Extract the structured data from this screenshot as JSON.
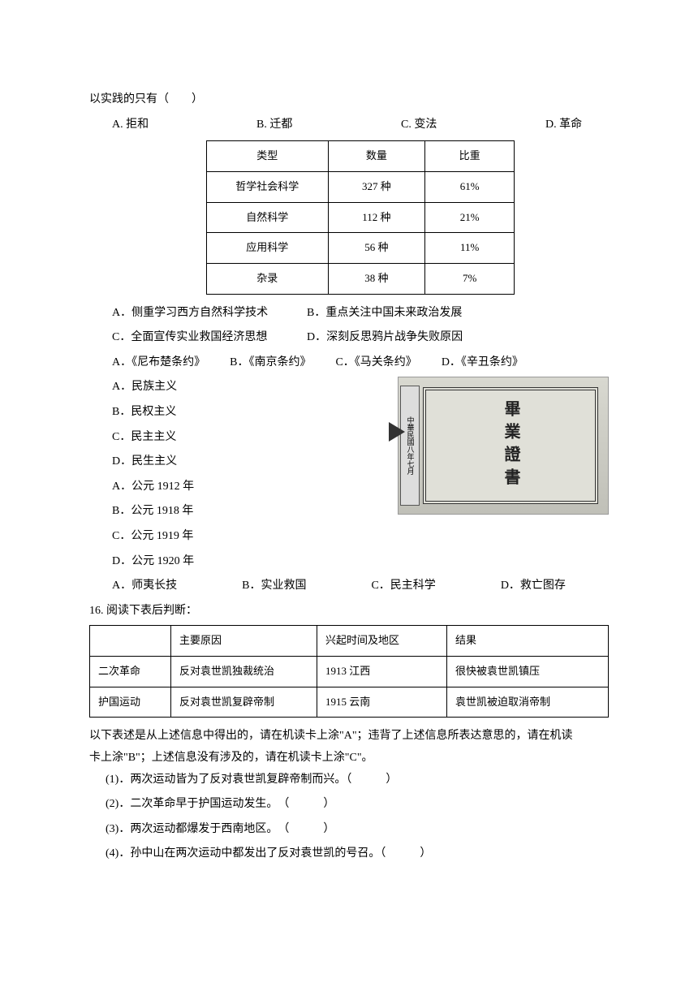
{
  "q1": {
    "text": "以实践的只有（　　）",
    "options": {
      "a": "A. 拒和",
      "b": "B. 迁都",
      "c": "C. 变法",
      "d": "D. 革命"
    }
  },
  "types_table": {
    "headers": [
      "类型",
      "数量",
      "比重"
    ],
    "rows": [
      [
        "哲学社会科学",
        "327 种",
        "61%"
      ],
      [
        "自然科学",
        "112 种",
        "21%"
      ],
      [
        "应用科学",
        "56 种",
        "11%"
      ],
      [
        "杂录",
        "38 种",
        "7%"
      ]
    ]
  },
  "q2": {
    "options": {
      "a": "A．侧重学习西方自然科学技术",
      "b": "B．重点关注中国未来政治发展",
      "c": "C．全面宣传实业救国经济思想",
      "d": "D．深刻反思鸦片战争失败原因"
    }
  },
  "q3": {
    "options": {
      "a": "A．《尼布楚条约》",
      "b": "B．《南京条约》",
      "c": "C．《马关条约》",
      "d": "D．《辛丑条约》"
    }
  },
  "q4": {
    "options": {
      "a": "A．民族主义",
      "b": "B．民权主义",
      "c": "C．民主主义",
      "d": "D．民生主义"
    }
  },
  "q5": {
    "options": {
      "a": "A．公元 1912 年",
      "b": "B．公元 1918 年",
      "c": "C．公元 1919 年",
      "d": "D．公元 1920 年"
    }
  },
  "q6": {
    "options": {
      "a": "A．师夷长技",
      "b": "B．实业救国",
      "c": "C．民主科学",
      "d": "D．救亡图存"
    }
  },
  "diploma": {
    "title": "畢業證書",
    "stamp": "中華民國八年七月"
  },
  "q16": {
    "title": "16. 阅读下表后判断：",
    "headers": [
      "",
      "主要原因",
      "兴起时间及地区",
      "结果"
    ],
    "rows": [
      [
        "二次革命",
        "反对袁世凯独裁统治",
        "1913 江西",
        "很快被袁世凯镇压"
      ],
      [
        "护国运动",
        "反对袁世凯复辟帝制",
        "1915 云南",
        "袁世凯被迫取消帝制"
      ]
    ],
    "instruction1": "以下表述是从上述信息中得出的，请在机读卡上涂\"A\"；违背了上述信息所表达意思的，请在机读",
    "instruction2": "卡上涂\"B\"；上述信息没有涉及的，请在机读卡上涂\"C\"。",
    "sub1": "(1)．两次运动皆为了反对袁世凯复辟帝制而兴。（　　　）",
    "sub2": "(2)．二次革命早于护国运动发生。　（　　　）",
    "sub3": "(3)．两次运动都爆发于西南地区。　（　　　）",
    "sub4": "(4)．孙中山在两次运动中都发出了反对袁世凯的号召。（　　　）"
  }
}
